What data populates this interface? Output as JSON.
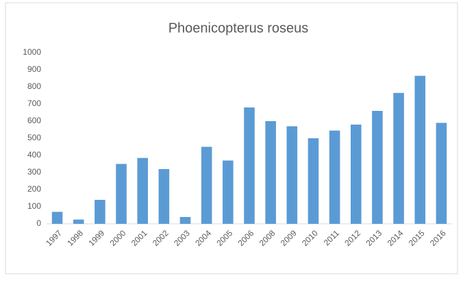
{
  "chart_data": {
    "type": "bar",
    "title": "Phoenicopterus roseus",
    "categories": [
      "1997",
      "1998",
      "1999",
      "2000",
      "2001",
      "2002",
      "2003",
      "2004",
      "2005",
      "2006",
      "2008",
      "2009",
      "2010",
      "2011",
      "2012",
      "2013",
      "2014",
      "2015",
      "2016"
    ],
    "values": [
      70,
      25,
      140,
      350,
      385,
      320,
      40,
      450,
      370,
      680,
      600,
      570,
      500,
      545,
      580,
      660,
      765,
      865,
      590
    ],
    "color": "#5b9bd5",
    "ylim": [
      0,
      1000
    ],
    "yticks": [
      0,
      100,
      200,
      300,
      400,
      500,
      600,
      700,
      800,
      900,
      1000
    ],
    "grid": false
  }
}
